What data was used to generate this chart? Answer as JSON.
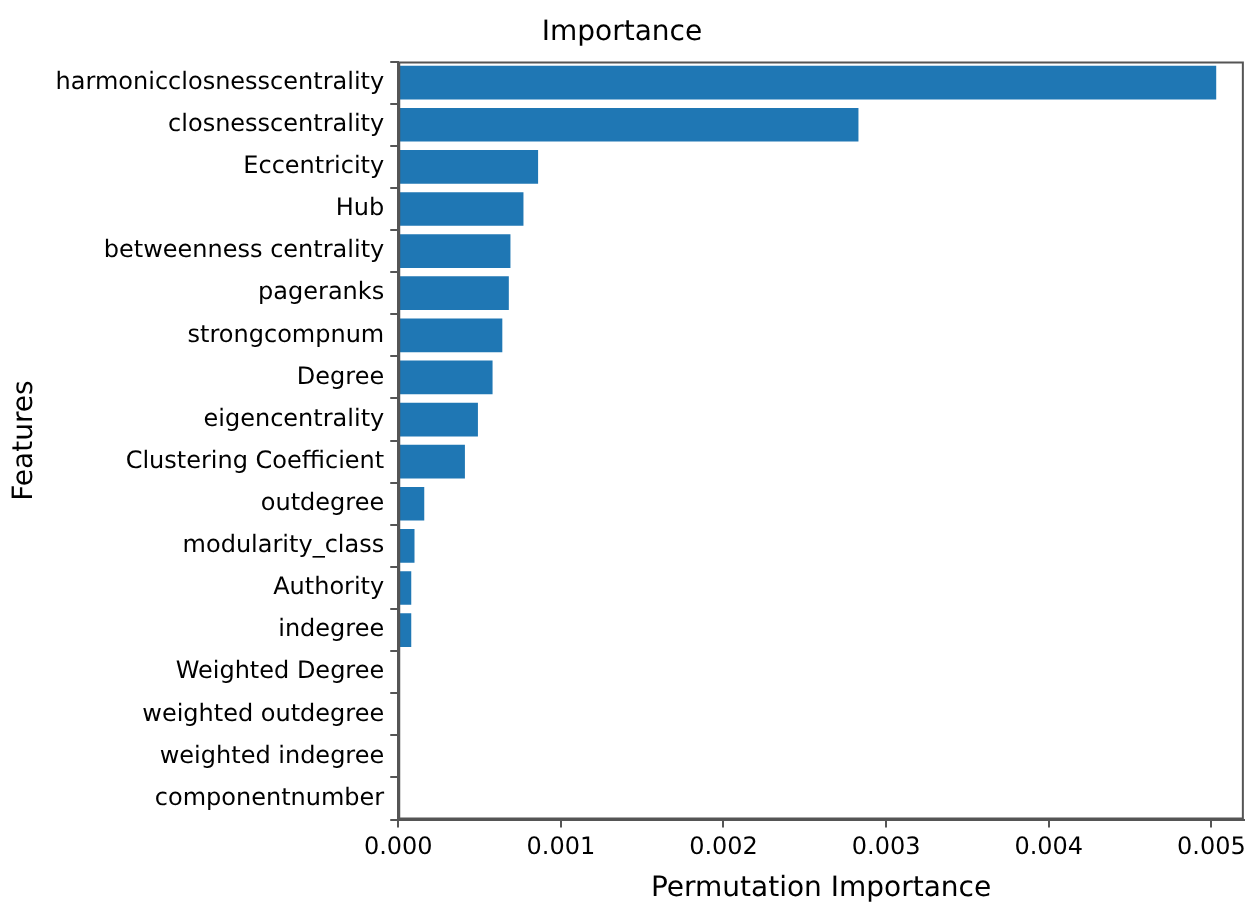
{
  "chart_data": {
    "type": "bar",
    "orientation": "horizontal",
    "title": "Importance",
    "xlabel": "Permutation Importance",
    "ylabel": "Features",
    "categories": [
      "harmonicclosnesscentrality",
      "closnesscentrality",
      "Eccentricity",
      "Hub",
      "betweenness centrality",
      "pageranks",
      "strongcompnum",
      "Degree",
      "eigencentrality",
      "Clustering Coefficient",
      "outdegree",
      "modularity_class",
      "Authority",
      "indegree",
      "Weighted Degree",
      "weighted outdegree",
      "weighted indegree",
      "componentnumber"
    ],
    "values": [
      0.00503,
      0.00283,
      0.00086,
      0.00077,
      0.00069,
      0.00068,
      0.00064,
      0.00058,
      0.00049,
      0.00041,
      0.00016,
      0.0001,
      8e-05,
      8e-05,
      0,
      0,
      0,
      0
    ],
    "color": "#1f77b4",
    "xlim": [
      0,
      0.0052
    ],
    "xticks": [
      {
        "value": 0,
        "label": "0.000"
      },
      {
        "value": 0.001,
        "label": "0.001"
      },
      {
        "value": 0.002,
        "label": "0.002"
      },
      {
        "value": 0.003,
        "label": "0.003"
      },
      {
        "value": 0.004,
        "label": "0.004"
      },
      {
        "value": 0.005,
        "label": "0.005"
      }
    ],
    "grid": false,
    "legend": false
  }
}
